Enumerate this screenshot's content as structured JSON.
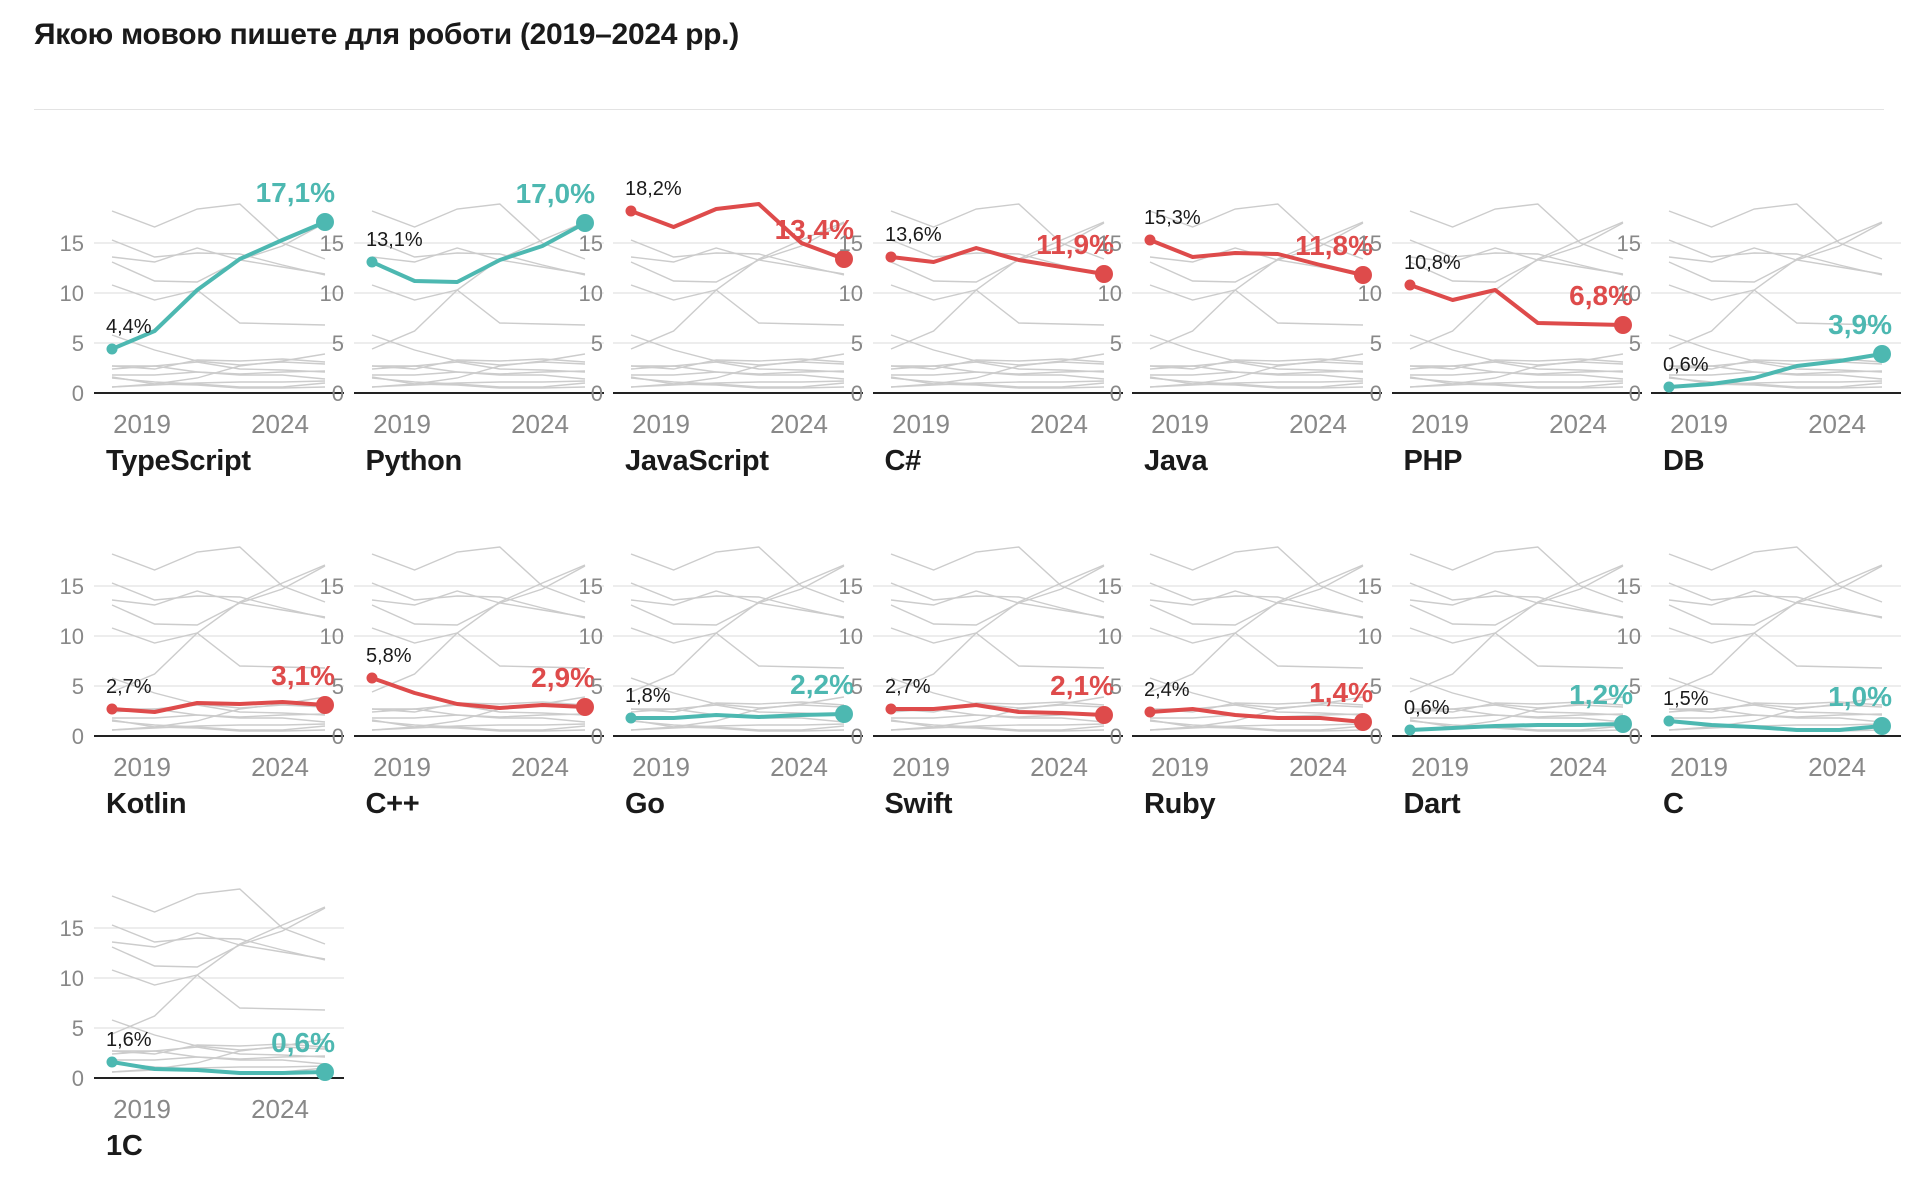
{
  "title": "Якою мовою пишете для роботи (2019–2024 рр.)",
  "colors": {
    "up": "#4db8b1",
    "down": "#de4b4b",
    "background_line": "#cccccc",
    "grid": "#e2e2e2",
    "axis": "#222222",
    "tick": "#888888"
  },
  "chart_data": {
    "type": "line",
    "layout": "small-multiples",
    "x": [
      2019,
      2020,
      2021,
      2022,
      2023,
      2024
    ],
    "x_ticks": [
      "2019",
      "2024"
    ],
    "y_ticks": [
      "0",
      "5",
      "10",
      "15"
    ],
    "ylim": [
      0,
      19
    ],
    "series": [
      {
        "name": "TypeScript",
        "values": [
          4.4,
          6.2,
          10.3,
          13.4,
          15.3,
          17.1
        ],
        "start_label": "4,4%",
        "end_label": "17,1%",
        "trend": "up"
      },
      {
        "name": "Python",
        "values": [
          13.1,
          11.2,
          11.1,
          13.3,
          14.7,
          17.0
        ],
        "start_label": "13,1%",
        "end_label": "17,0%",
        "trend": "up"
      },
      {
        "name": "JavaScript",
        "values": [
          18.2,
          16.6,
          18.4,
          18.9,
          15.0,
          13.4
        ],
        "start_label": "18,2%",
        "end_label": "13,4%",
        "trend": "down"
      },
      {
        "name": "C#",
        "values": [
          13.6,
          13.1,
          14.5,
          13.3,
          12.6,
          11.9
        ],
        "start_label": "13,6%",
        "end_label": "11,9%",
        "trend": "down"
      },
      {
        "name": "Java",
        "values": [
          15.3,
          13.6,
          14.0,
          13.9,
          12.8,
          11.8
        ],
        "start_label": "15,3%",
        "end_label": "11,8%",
        "trend": "down"
      },
      {
        "name": "PHP",
        "values": [
          10.8,
          9.3,
          10.3,
          7.0,
          6.9,
          6.8
        ],
        "start_label": "10,8%",
        "end_label": "6,8%",
        "trend": "down"
      },
      {
        "name": "DB",
        "values": [
          0.6,
          0.9,
          1.5,
          2.7,
          3.2,
          3.9
        ],
        "start_label": "0,6%",
        "end_label": "3,9%",
        "trend": "up"
      },
      {
        "name": "Kotlin",
        "values": [
          2.7,
          2.4,
          3.3,
          3.2,
          3.4,
          3.1
        ],
        "start_label": "2,7%",
        "end_label": "3,1%",
        "trend": "down"
      },
      {
        "name": "C++",
        "values": [
          5.8,
          4.3,
          3.2,
          2.8,
          3.1,
          2.9
        ],
        "start_label": "5,8%",
        "end_label": "2,9%",
        "trend": "down"
      },
      {
        "name": "Go",
        "values": [
          1.8,
          1.8,
          2.1,
          1.9,
          2.1,
          2.2
        ],
        "start_label": "1,8%",
        "end_label": "2,2%",
        "trend": "up"
      },
      {
        "name": "Swift",
        "values": [
          2.7,
          2.7,
          3.1,
          2.4,
          2.3,
          2.1
        ],
        "start_label": "2,7%",
        "end_label": "2,1%",
        "trend": "down"
      },
      {
        "name": "Ruby",
        "values": [
          2.4,
          2.7,
          2.1,
          1.8,
          1.8,
          1.4
        ],
        "start_label": "2,4%",
        "end_label": "1,4%",
        "trend": "down"
      },
      {
        "name": "Dart",
        "values": [
          0.6,
          0.8,
          1.0,
          1.1,
          1.1,
          1.2
        ],
        "start_label": "0,6%",
        "end_label": "1,2%",
        "trend": "up"
      },
      {
        "name": "C",
        "values": [
          1.5,
          1.1,
          0.9,
          0.6,
          0.6,
          1.0
        ],
        "start_label": "1,5%",
        "end_label": "1,0%",
        "trend": "up"
      },
      {
        "name": "1C",
        "values": [
          1.6,
          0.9,
          0.8,
          0.5,
          0.5,
          0.6
        ],
        "start_label": "1,6%",
        "end_label": "0,6%",
        "trend": "up"
      }
    ]
  }
}
